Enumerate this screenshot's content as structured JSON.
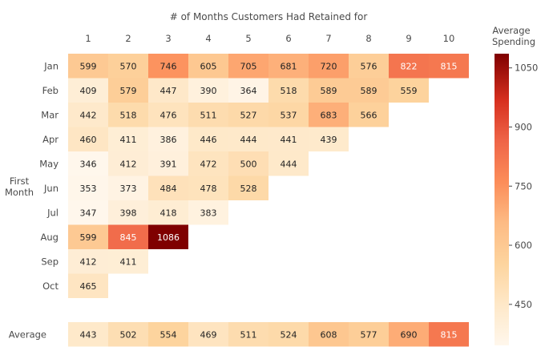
{
  "chart_data": {
    "type": "heatmap",
    "title": "# of Months Customers Had Retained for",
    "ylabel_line1": "First",
    "ylabel_line2": "Month",
    "columns": [
      "1",
      "2",
      "3",
      "4",
      "5",
      "6",
      "7",
      "8",
      "9",
      "10"
    ],
    "rows": [
      "Jan",
      "Feb",
      "Mar",
      "Apr",
      "May",
      "Jun",
      "Jul",
      "Aug",
      "Sep",
      "Oct"
    ],
    "values": [
      [
        599,
        570,
        746,
        605,
        705,
        681,
        720,
        576,
        822,
        815
      ],
      [
        409,
        579,
        447,
        390,
        364,
        518,
        589,
        589,
        559,
        null
      ],
      [
        442,
        518,
        476,
        511,
        527,
        537,
        683,
        566,
        null,
        null
      ],
      [
        460,
        411,
        386,
        446,
        444,
        441,
        439,
        null,
        null,
        null
      ],
      [
        346,
        412,
        391,
        472,
        500,
        444,
        null,
        null,
        null,
        null
      ],
      [
        353,
        373,
        484,
        478,
        528,
        null,
        null,
        null,
        null,
        null
      ],
      [
        347,
        398,
        418,
        383,
        null,
        null,
        null,
        null,
        null,
        null
      ],
      [
        599,
        845,
        1086,
        null,
        null,
        null,
        null,
        null,
        null,
        null
      ],
      [
        412,
        411,
        null,
        null,
        null,
        null,
        null,
        null,
        null,
        null
      ],
      [
        465,
        null,
        null,
        null,
        null,
        null,
        null,
        null,
        null,
        null
      ]
    ],
    "average_label": "Average",
    "average": [
      443,
      502,
      554,
      469,
      511,
      524,
      608,
      577,
      690,
      815
    ],
    "colorbar": {
      "title_line1": "Average",
      "title_line2": "Spending",
      "range": [
        346,
        1086
      ],
      "ticks": [
        450,
        600,
        750,
        900,
        1050
      ],
      "colormap": "OrRd"
    }
  }
}
